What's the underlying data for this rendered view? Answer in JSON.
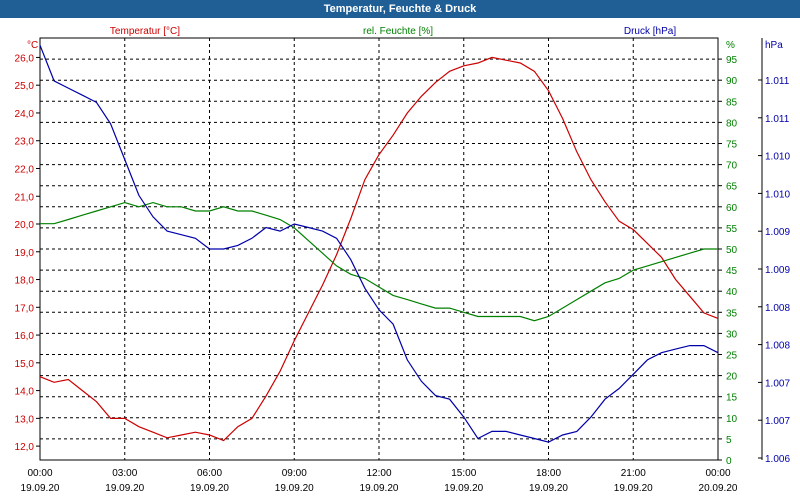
{
  "title": "Temperatur, Feuchte & Druck",
  "chart_data": {
    "type": "line",
    "title": "Temperatur, Feuchte & Druck",
    "x_labels": [
      {
        "time": "00:00",
        "date": "19.09.20"
      },
      {
        "time": "03:00",
        "date": "19.09.20"
      },
      {
        "time": "06:00",
        "date": "19.09.20"
      },
      {
        "time": "09:00",
        "date": "19.09.20"
      },
      {
        "time": "12:00",
        "date": "19.09.20"
      },
      {
        "time": "15:00",
        "date": "19.09.20"
      },
      {
        "time": "18:00",
        "date": "19.09.20"
      },
      {
        "time": "21:00",
        "date": "19.09.20"
      },
      {
        "time": "00:00",
        "date": "20.09.20"
      }
    ],
    "x_range_hours": [
      0,
      24
    ],
    "grid": true,
    "axes": {
      "temperature": {
        "unit_label": "°C",
        "range": [
          11.5,
          26.7
        ],
        "ticks": [
          "12,0",
          "13,0",
          "14,0",
          "15,0",
          "16,0",
          "17,0",
          "18,0",
          "19,0",
          "20,0",
          "21,0",
          "22,0",
          "23,0",
          "24,0",
          "25,0",
          "26,0"
        ]
      },
      "humidity": {
        "unit_label": "%",
        "range": [
          0,
          100
        ],
        "ticks": [
          "0",
          "5",
          "10",
          "15",
          "20",
          "25",
          "30",
          "35",
          "40",
          "45",
          "50",
          "55",
          "60",
          "65",
          "70",
          "75",
          "80",
          "85",
          "90",
          "95"
        ]
      },
      "pressure": {
        "unit_label": "hPa",
        "range": [
          1005.9,
          1011.8
        ],
        "ticks": [
          "1.006",
          "1.007",
          "1.007",
          "1.008",
          "1.008",
          "1.009",
          "1.009",
          "1.010",
          "1.010",
          "1.011",
          "1.011"
        ]
      }
    },
    "legend": [
      "Temperatur [°C]",
      "rel. Feuchte [%]",
      "Druck [hPa]"
    ],
    "series": [
      {
        "name": "Temperatur [°C]",
        "axis": "temperature",
        "color": "#cc0000",
        "x": [
          0,
          0.5,
          1,
          1.5,
          2,
          2.5,
          3,
          3.5,
          4,
          4.5,
          5,
          5.5,
          6,
          6.5,
          7,
          7.5,
          8,
          8.5,
          9,
          9.5,
          10,
          10.5,
          11,
          11.5,
          12,
          12.5,
          13,
          13.5,
          14,
          14.5,
          15,
          15.5,
          16,
          16.5,
          17,
          17.5,
          18,
          18.5,
          19,
          19.5,
          20,
          20.5,
          21,
          21.5,
          22,
          22.5,
          23,
          23.5,
          24
        ],
        "values": [
          14.5,
          14.3,
          14.4,
          14.0,
          13.6,
          13.0,
          13.0,
          12.7,
          12.5,
          12.3,
          12.4,
          12.5,
          12.4,
          12.2,
          12.7,
          13.0,
          13.8,
          14.7,
          15.8,
          16.8,
          17.8,
          18.9,
          20.2,
          21.6,
          22.5,
          23.2,
          24.0,
          24.6,
          25.1,
          25.5,
          25.7,
          25.8,
          26.0,
          25.9,
          25.8,
          25.5,
          24.8,
          23.8,
          22.6,
          21.6,
          20.8,
          20.1,
          19.8,
          19.3,
          18.8,
          18.0,
          17.4,
          16.8,
          16.6
        ]
      },
      {
        "name": "rel. Feuchte [%]",
        "axis": "humidity",
        "color": "#008000",
        "x": [
          0,
          0.5,
          1,
          1.5,
          2,
          2.5,
          3,
          3.5,
          4,
          4.5,
          5,
          5.5,
          6,
          6.5,
          7,
          7.5,
          8,
          8.5,
          9,
          9.5,
          10,
          10.5,
          11,
          11.5,
          12,
          12.5,
          13,
          13.5,
          14,
          14.5,
          15,
          15.5,
          16,
          16.5,
          17,
          17.5,
          18,
          18.5,
          19,
          19.5,
          20,
          20.5,
          21,
          21.5,
          22,
          22.5,
          23,
          23.5,
          24
        ],
        "values": [
          56,
          56,
          57,
          58,
          59,
          60,
          61,
          60,
          61,
          60,
          60,
          59,
          59,
          60,
          59,
          59,
          58,
          57,
          55,
          52,
          49,
          46,
          44,
          43,
          41,
          39,
          38,
          37,
          36,
          36,
          35,
          34,
          34,
          34,
          34,
          33,
          34,
          36,
          38,
          40,
          42,
          43,
          45,
          46,
          47,
          48,
          49,
          50,
          50
        ]
      },
      {
        "name": "Druck [hPa]",
        "axis": "pressure",
        "color": "#0000aa",
        "x": [
          0,
          0.5,
          1,
          1.5,
          2,
          2.5,
          3,
          3.5,
          4,
          4.5,
          5,
          5.5,
          6,
          6.5,
          7,
          7.5,
          8,
          8.5,
          9,
          9.5,
          10,
          10.5,
          11,
          11.5,
          12,
          12.5,
          13,
          13.5,
          14,
          14.5,
          15,
          15.5,
          16,
          16.5,
          17,
          17.5,
          18,
          18.5,
          19,
          19.5,
          20,
          20.5,
          21,
          21.5,
          22,
          22.5,
          23,
          23.5,
          24
        ],
        "values": [
          1011.7,
          1011.2,
          1011.1,
          1011.0,
          1010.9,
          1010.6,
          1010.1,
          1009.6,
          1009.3,
          1009.1,
          1009.05,
          1009.0,
          1008.85,
          1008.85,
          1008.9,
          1009.0,
          1009.15,
          1009.1,
          1009.2,
          1009.15,
          1009.1,
          1009.0,
          1008.7,
          1008.3,
          1008.0,
          1007.8,
          1007.3,
          1007.0,
          1006.8,
          1006.75,
          1006.5,
          1006.2,
          1006.3,
          1006.3,
          1006.25,
          1006.2,
          1006.15,
          1006.25,
          1006.3,
          1006.5,
          1006.75,
          1006.9,
          1007.1,
          1007.3,
          1007.4,
          1007.45,
          1007.5,
          1007.5,
          1007.4
        ]
      }
    ]
  }
}
